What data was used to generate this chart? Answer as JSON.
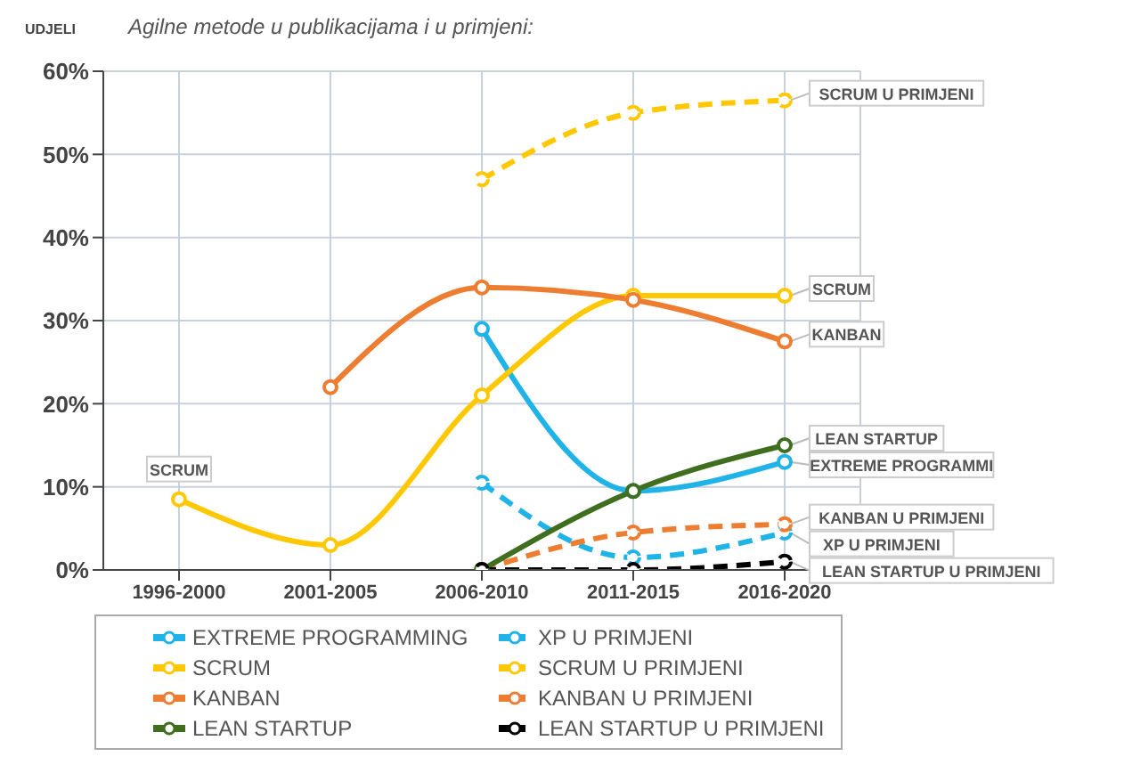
{
  "chart_data": {
    "type": "line",
    "title": "Agilne metode u publikacijama i u primjeni:",
    "ylabel": "UDJELI",
    "categories": [
      "1996-2000",
      "2001-2005",
      "2006-2010",
      "2011-2015",
      "2016-2020"
    ],
    "series": [
      {
        "name": "EXTREME PROGRAMMING",
        "color": "#1fb3e8",
        "values": [
          null,
          null,
          29,
          9.5,
          13
        ]
      },
      {
        "name": "XP U PRIMJENI",
        "color": "#1fb3e8",
        "line_style": "dashed",
        "values": [
          null,
          null,
          10.5,
          1.5,
          4.5
        ]
      },
      {
        "name": "SCRUM",
        "color": "#ffc800",
        "values": [
          8.5,
          3,
          21,
          33,
          33
        ]
      },
      {
        "name": "SCRUM U PRIMJENI",
        "color": "#ffc800",
        "line_style": "dashed",
        "values": [
          null,
          null,
          47,
          55,
          56.5
        ]
      },
      {
        "name": "KANBAN",
        "color": "#ed7d31",
        "values": [
          null,
          22,
          34,
          32.5,
          27.5
        ]
      },
      {
        "name": "KANBAN U PRIMJENI",
        "color": "#ed7d31",
        "line_style": "dashed",
        "values": [
          null,
          null,
          0,
          4.5,
          5.5
        ]
      },
      {
        "name": "LEAN STARTUP",
        "color": "#3f6e1f",
        "values": [
          null,
          null,
          0,
          9.5,
          15
        ]
      },
      {
        "name": "LEAN STARTUP U PRIMJENI",
        "color": "#000000",
        "line_style": "dashed",
        "values": [
          null,
          null,
          0,
          0,
          1
        ]
      }
    ],
    "annotations": [
      {
        "text": "SCRUM",
        "x": "1996-2000",
        "y": 8.5
      },
      {
        "text": "SCRUM U PRIMJENI",
        "x": "2016-2020",
        "y": 56.5
      },
      {
        "text": "SCRUM",
        "x": "2016-2020",
        "y": 33
      },
      {
        "text": "KANBAN",
        "x": "2016-2020",
        "y": 27.5
      },
      {
        "text": "LEAN STARTUP",
        "x": "2016-2020",
        "y": 15
      },
      {
        "text": "EXTREME PROGRAMMI",
        "x": "2016-2020",
        "y": 13
      },
      {
        "text": "KANBAN U PRIMJENI",
        "x": "2016-2020",
        "y": 5.5
      },
      {
        "text": "XP U PRIMJENI",
        "x": "2016-2020",
        "y": 4.5
      },
      {
        "text": "LEAN STARTUP U PRIMJENI",
        "x": "2016-2020",
        "y": 1
      }
    ],
    "ylim": [
      0,
      60
    ],
    "yticks": [
      {
        "value": 0,
        "label": "0%"
      },
      {
        "value": 10,
        "label": "10%"
      },
      {
        "value": 20,
        "label": "20%"
      },
      {
        "value": 30,
        "label": "30%"
      },
      {
        "value": 40,
        "label": "40%"
      },
      {
        "value": 50,
        "label": "50%"
      },
      {
        "value": 60,
        "label": "60%"
      }
    ],
    "grid": true,
    "legend": "bottom",
    "marker": "circle",
    "line_style": "solid"
  }
}
